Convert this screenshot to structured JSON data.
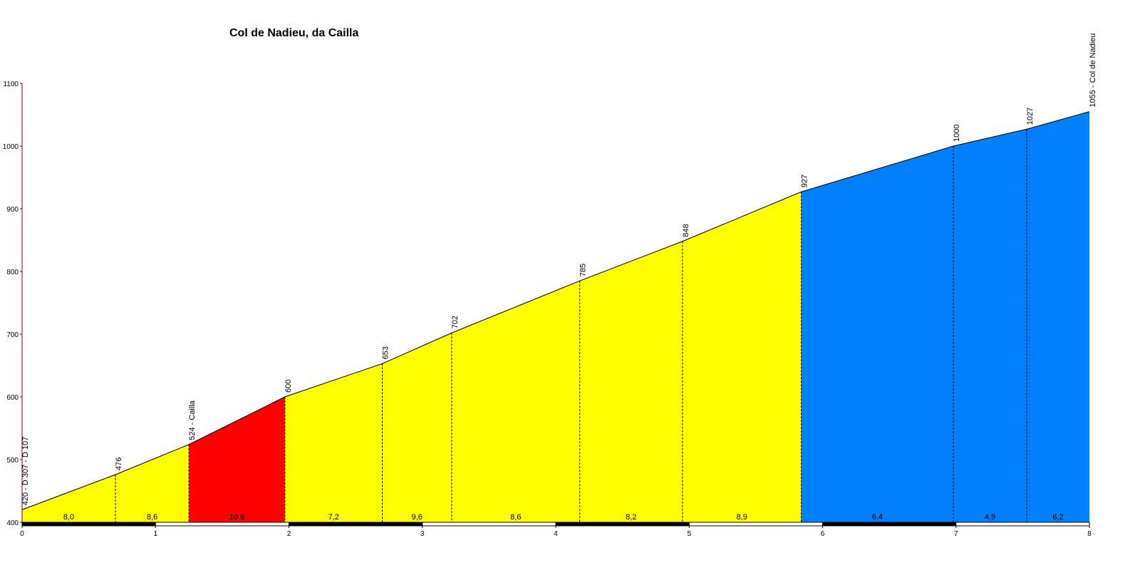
{
  "chart_data": {
    "type": "area",
    "title": "Col de Nadieu, da Cailla",
    "xlabel": "",
    "ylabel": "",
    "xlim": [
      0,
      8
    ],
    "ylim": [
      400,
      1100
    ],
    "x_ticks": [
      "0",
      "1",
      "2",
      "3",
      "4",
      "5",
      "6",
      "7",
      "8"
    ],
    "y_ticks": [
      "400",
      "500",
      "600",
      "700",
      "800",
      "900",
      "1000",
      "1100"
    ],
    "points": [
      {
        "x": 0,
        "y": 420,
        "label": "420 - D 307 - D 107"
      },
      {
        "x": 0.7,
        "y": 476,
        "label": "476"
      },
      {
        "x": 1.25,
        "y": 524,
        "label": "524 - Cailla"
      },
      {
        "x": 1.97,
        "y": 600,
        "label": "600"
      },
      {
        "x": 2.7,
        "y": 653,
        "label": "653"
      },
      {
        "x": 3.22,
        "y": 702,
        "label": "702"
      },
      {
        "x": 4.18,
        "y": 785,
        "label": "785"
      },
      {
        "x": 4.95,
        "y": 848,
        "label": "848"
      },
      {
        "x": 5.84,
        "y": 927,
        "label": "927"
      },
      {
        "x": 6.98,
        "y": 1000,
        "label": "1000"
      },
      {
        "x": 7.53,
        "y": 1027,
        "label": "1027"
      },
      {
        "x": 8,
        "y": 1055,
        "label": "1055 - Col de Nadieu"
      }
    ],
    "segments": [
      {
        "from": 0,
        "to": 0.7,
        "gradient": "8,0",
        "color": "#ffff00"
      },
      {
        "from": 0.7,
        "to": 1.25,
        "gradient": "8,6",
        "color": "#ffff00"
      },
      {
        "from": 1.25,
        "to": 1.97,
        "gradient": "10,6",
        "color": "#ff0000"
      },
      {
        "from": 1.97,
        "to": 2.7,
        "gradient": "7,2",
        "color": "#ffff00"
      },
      {
        "from": 2.7,
        "to": 3.22,
        "gradient": "9,6",
        "color": "#ffff00"
      },
      {
        "from": 3.22,
        "to": 4.18,
        "gradient": "8,6",
        "color": "#ffff00"
      },
      {
        "from": 4.18,
        "to": 4.95,
        "gradient": "8,2",
        "color": "#ffff00"
      },
      {
        "from": 4.95,
        "to": 5.84,
        "gradient": "8,9",
        "color": "#ffff00"
      },
      {
        "from": 5.84,
        "to": 6.98,
        "gradient": "6,4",
        "color": "#0080ff"
      },
      {
        "from": 6.98,
        "to": 7.53,
        "gradient": "4,9",
        "color": "#0080ff"
      },
      {
        "from": 7.53,
        "to": 8,
        "gradient": "6,2",
        "color": "#0080ff"
      }
    ],
    "grid": false,
    "legend": "none"
  }
}
